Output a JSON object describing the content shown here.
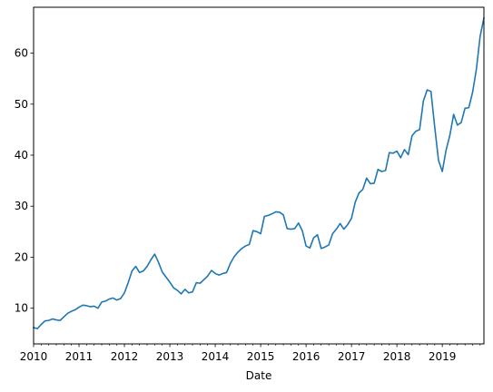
{
  "chart_data": {
    "type": "line",
    "xlabel": "Date",
    "ylabel": "",
    "title": "",
    "xlim": [
      "2010-01",
      "2019-12"
    ],
    "ylim": [
      3.0,
      69.0
    ],
    "x_ticks": [
      {
        "label": "2010",
        "value": "2010-01"
      },
      {
        "label": "2011",
        "value": "2011-01"
      },
      {
        "label": "2012",
        "value": "2012-01"
      },
      {
        "label": "2013",
        "value": "2013-01"
      },
      {
        "label": "2014",
        "value": "2014-01"
      },
      {
        "label": "2015",
        "value": "2015-01"
      },
      {
        "label": "2016",
        "value": "2016-01"
      },
      {
        "label": "2017",
        "value": "2017-01"
      },
      {
        "label": "2018",
        "value": "2018-01"
      },
      {
        "label": "2019",
        "value": "2019-01"
      }
    ],
    "y_ticks": [
      10,
      20,
      30,
      40,
      50,
      60
    ],
    "grid": false,
    "legend": "none",
    "series": [
      {
        "color": "#1f77b4",
        "x": [
          "2010-01",
          "2010-02",
          "2010-03",
          "2010-04",
          "2010-05",
          "2010-06",
          "2010-07",
          "2010-08",
          "2010-09",
          "2010-10",
          "2010-11",
          "2010-12",
          "2011-01",
          "2011-02",
          "2011-03",
          "2011-04",
          "2011-05",
          "2011-06",
          "2011-07",
          "2011-08",
          "2011-09",
          "2011-10",
          "2011-11",
          "2011-12",
          "2012-01",
          "2012-02",
          "2012-03",
          "2012-04",
          "2012-05",
          "2012-06",
          "2012-07",
          "2012-08",
          "2012-09",
          "2012-10",
          "2012-11",
          "2012-12",
          "2013-01",
          "2013-02",
          "2013-03",
          "2013-04",
          "2013-05",
          "2013-06",
          "2013-07",
          "2013-08",
          "2013-09",
          "2013-10",
          "2013-11",
          "2013-12",
          "2014-01",
          "2014-02",
          "2014-03",
          "2014-04",
          "2014-05",
          "2014-06",
          "2014-07",
          "2014-08",
          "2014-09",
          "2014-10",
          "2014-11",
          "2014-12",
          "2015-01",
          "2015-02",
          "2015-03",
          "2015-04",
          "2015-05",
          "2015-06",
          "2015-07",
          "2015-08",
          "2015-09",
          "2015-10",
          "2015-11",
          "2015-12",
          "2016-01",
          "2016-02",
          "2016-03",
          "2016-04",
          "2016-05",
          "2016-06",
          "2016-07",
          "2016-08",
          "2016-09",
          "2016-10",
          "2016-11",
          "2016-12",
          "2017-01",
          "2017-02",
          "2017-03",
          "2017-04",
          "2017-05",
          "2017-06",
          "2017-07",
          "2017-08",
          "2017-09",
          "2017-10",
          "2017-11",
          "2017-12",
          "2018-01",
          "2018-02",
          "2018-03",
          "2018-04",
          "2018-05",
          "2018-06",
          "2018-07",
          "2018-08",
          "2018-09",
          "2018-10",
          "2018-11",
          "2018-12",
          "2019-01",
          "2019-02",
          "2019-03",
          "2019-04",
          "2019-05",
          "2019-06",
          "2019-07",
          "2019-08",
          "2019-09",
          "2019-10",
          "2019-11",
          "2019-12"
        ],
        "values": [
          6.2,
          6.0,
          6.8,
          7.5,
          7.6,
          7.9,
          7.7,
          7.6,
          8.3,
          9.0,
          9.4,
          9.7,
          10.2,
          10.6,
          10.5,
          10.3,
          10.4,
          10.0,
          11.2,
          11.4,
          11.8,
          12.0,
          11.6,
          11.9,
          13.0,
          15.0,
          17.3,
          18.2,
          17.0,
          17.3,
          18.2,
          19.5,
          20.6,
          19.0,
          17.1,
          16.1,
          15.1,
          14.0,
          13.5,
          12.8,
          13.7,
          13.0,
          13.2,
          15.0,
          14.9,
          15.6,
          16.3,
          17.4,
          16.8,
          16.5,
          16.8,
          17.0,
          18.8,
          20.1,
          21.0,
          21.7,
          22.2,
          22.5,
          25.2,
          25.0,
          24.6,
          28.0,
          28.2,
          28.5,
          28.9,
          28.8,
          28.3,
          25.6,
          25.5,
          25.6,
          26.7,
          25.2,
          22.2,
          21.8,
          23.8,
          24.4,
          21.7,
          22.0,
          22.4,
          24.6,
          25.5,
          26.6,
          25.5,
          26.4,
          27.6,
          30.8,
          32.6,
          33.3,
          35.5,
          34.4,
          34.5,
          37.2,
          36.8,
          37.0,
          40.5,
          40.4,
          40.8,
          39.5,
          41.1,
          40.1,
          43.8,
          44.7,
          45.0,
          50.6,
          52.8,
          52.5,
          45.5,
          39.0,
          36.8,
          41.0,
          43.9,
          48.0,
          45.9,
          46.4,
          49.2,
          49.3,
          52.3,
          56.8,
          63.3,
          66.9
        ]
      }
    ]
  }
}
